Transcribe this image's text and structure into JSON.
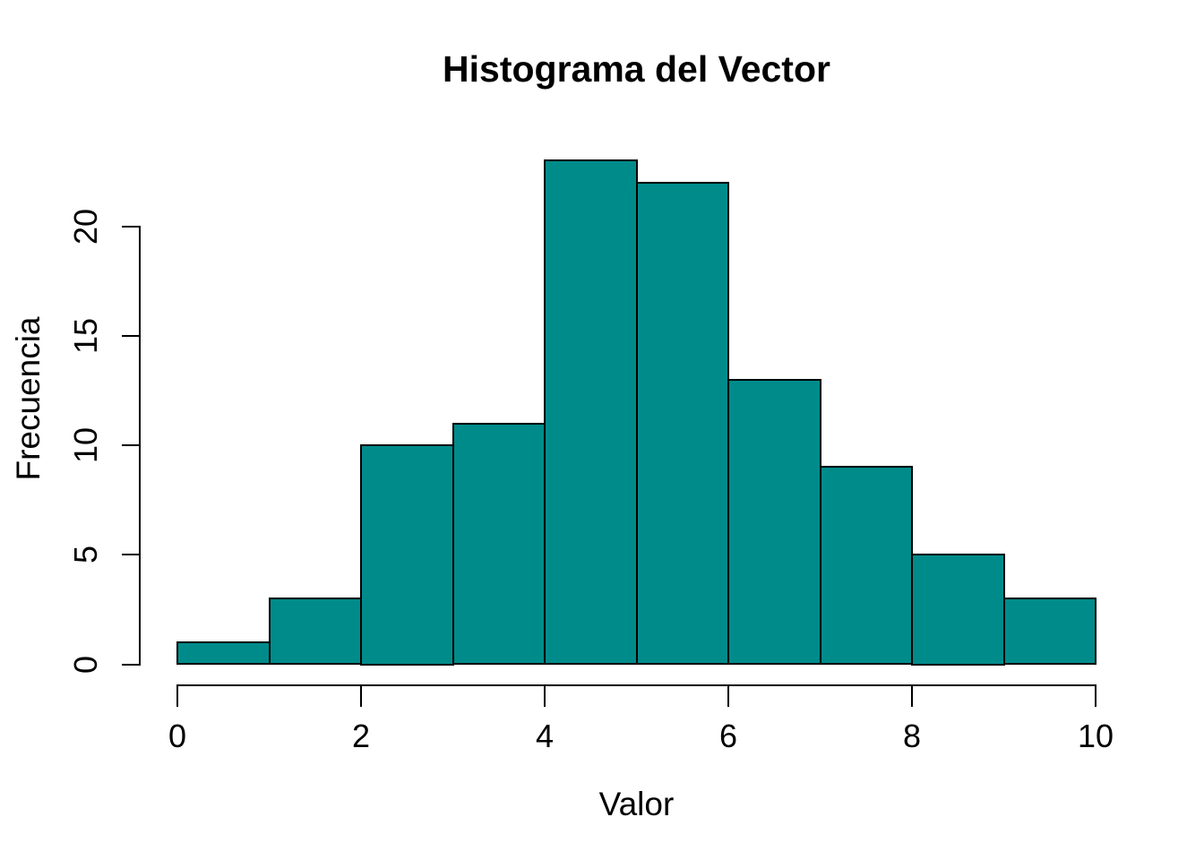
{
  "chart_data": {
    "type": "bar",
    "subtype": "histogram",
    "title": "Histograma del Vector",
    "xlabel": "Valor",
    "ylabel": "Frecuencia",
    "bin_edges": [
      0,
      1,
      2,
      3,
      4,
      5,
      6,
      7,
      8,
      9,
      10
    ],
    "values": [
      1,
      3,
      10,
      11,
      23,
      22,
      13,
      9,
      5,
      3
    ],
    "x_ticks": [
      "0",
      "2",
      "4",
      "6",
      "8",
      "10"
    ],
    "x_tick_values": [
      0,
      2,
      4,
      6,
      8,
      10
    ],
    "y_ticks": [
      "0",
      "5",
      "10",
      "15",
      "20"
    ],
    "y_tick_values": [
      0,
      5,
      10,
      15,
      20
    ],
    "xlim": [
      0,
      10
    ],
    "ylim": [
      0,
      23
    ],
    "y_axis_max": 20,
    "grid": false,
    "legend_position": "none",
    "bar_fill": "#008B8B",
    "bar_border": "#000000",
    "axis_color": "#000000",
    "text_color": "#000000",
    "background": "#FFFFFF"
  }
}
